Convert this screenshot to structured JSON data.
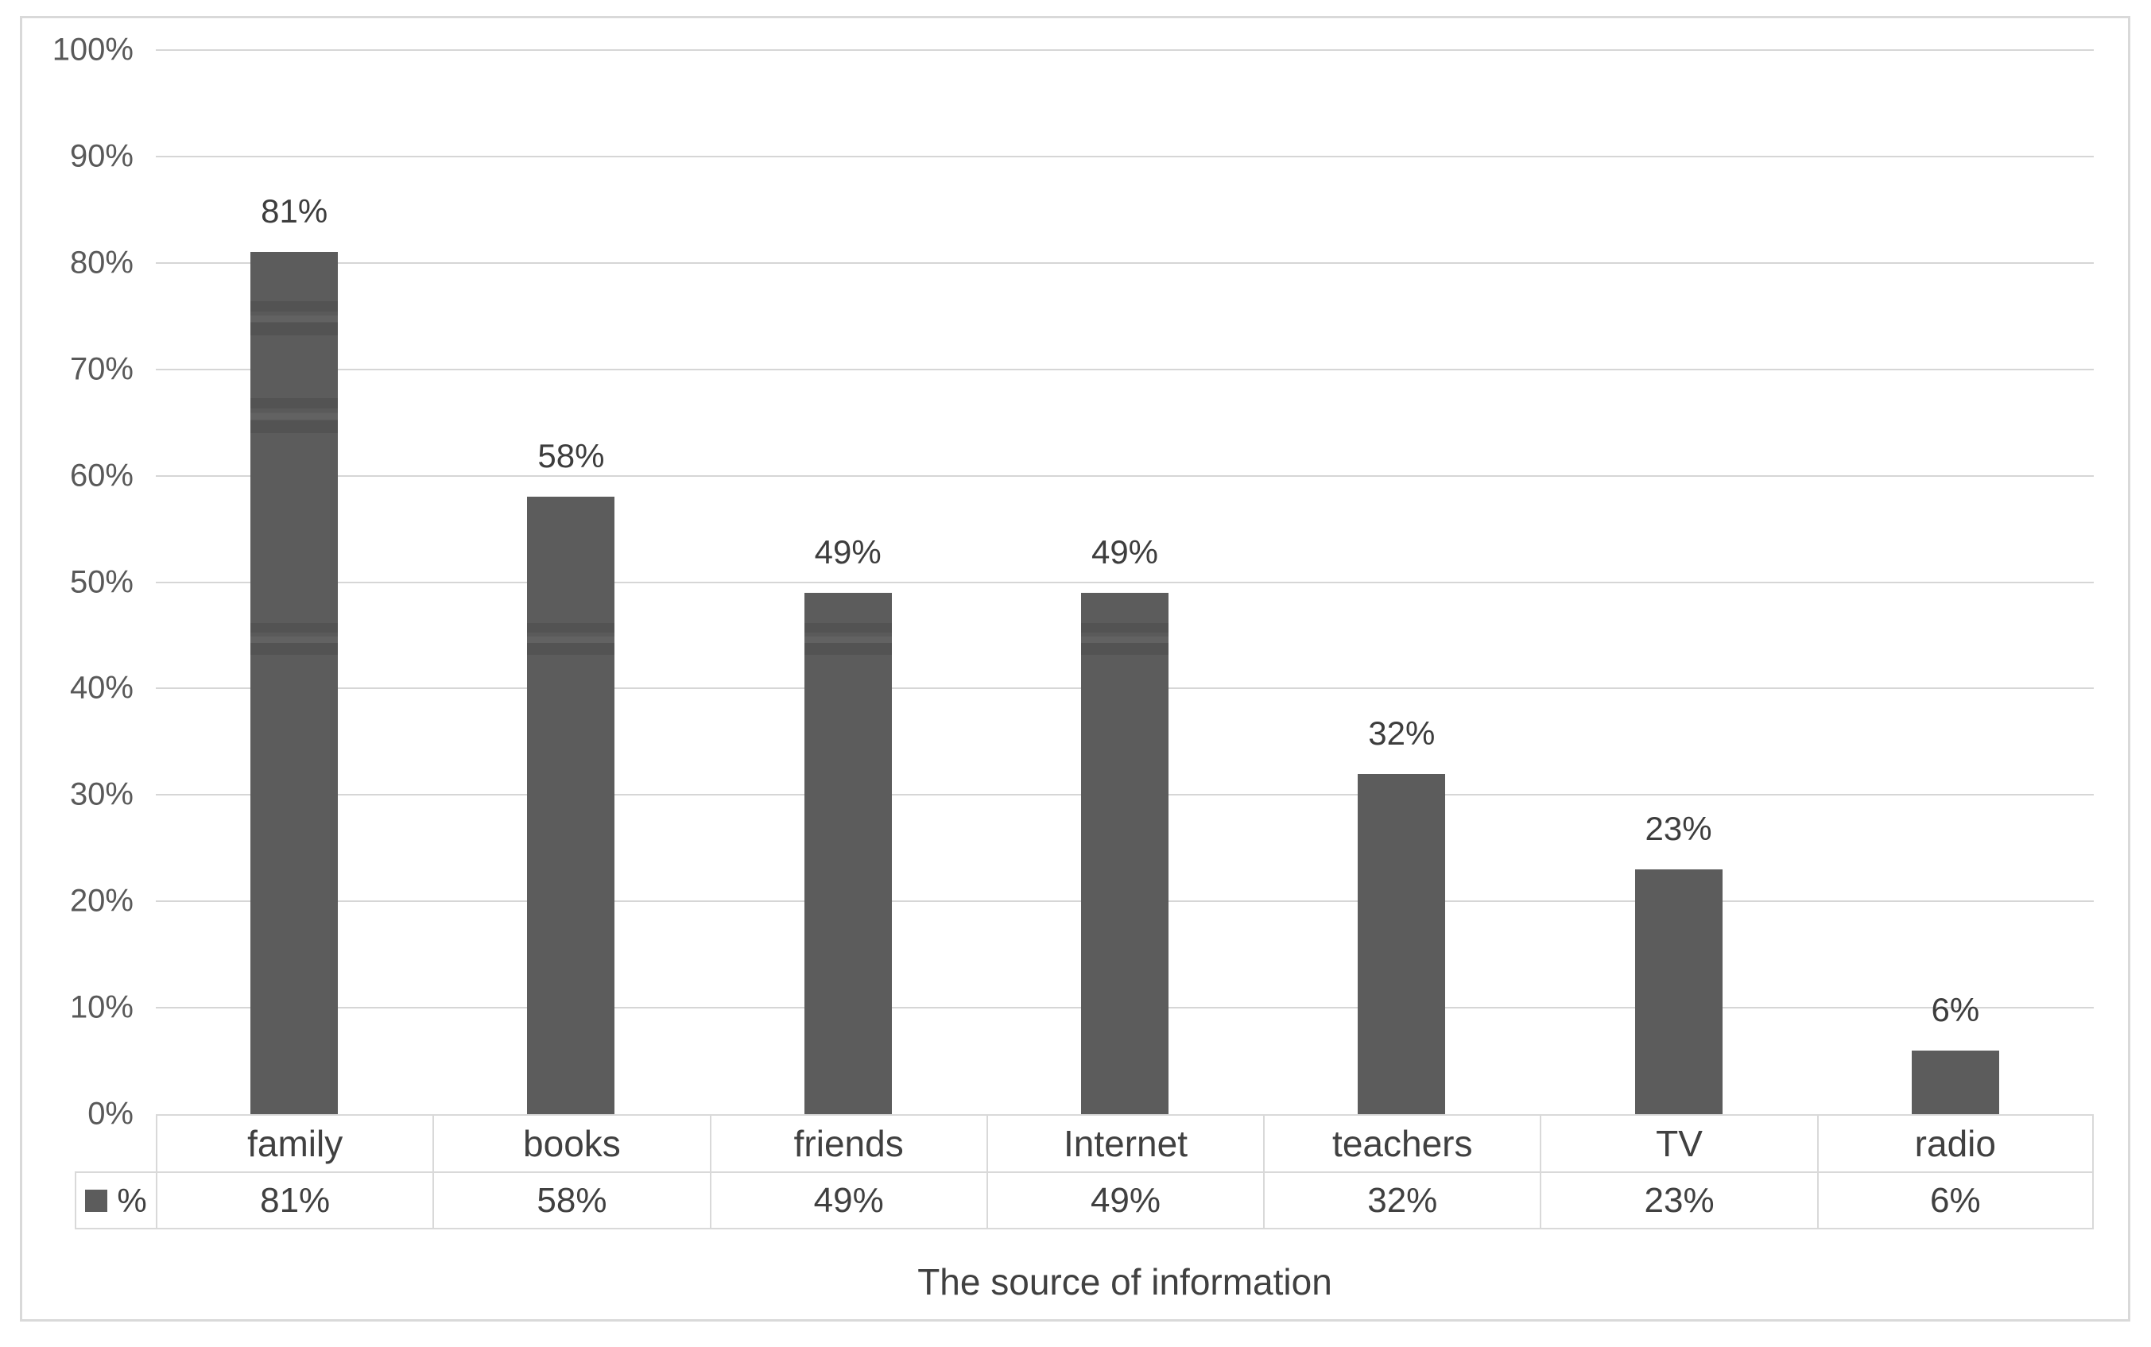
{
  "title": "The source of information",
  "chart_data": {
    "type": "bar",
    "categories": [
      "family",
      "books",
      "friends",
      "Internet",
      "teachers",
      "TV",
      "radio"
    ],
    "series": [
      {
        "name": "%",
        "values": [
          81,
          58,
          49,
          49,
          32,
          23,
          6
        ]
      }
    ],
    "value_labels": [
      "81%",
      "58%",
      "49%",
      "49%",
      "32%",
      "23%",
      "6%"
    ],
    "title": "",
    "xlabel": "The source of information",
    "ylabel": "",
    "ylim": [
      0,
      100
    ],
    "ytick_step": 10,
    "ytick_labels": [
      "0%",
      "10%",
      "20%",
      "30%",
      "40%",
      "50%",
      "60%",
      "70%",
      "80%",
      "90%",
      "100%"
    ],
    "grid": true,
    "legend_position": "data-table-left",
    "data_table": {
      "legend_key_label": "%",
      "header_row": [
        "family",
        "books",
        "friends",
        "Internet",
        "teachers",
        "TV",
        "radio"
      ],
      "value_row": [
        "81%",
        "58%",
        "49%",
        "49%",
        "32%",
        "23%",
        "6%"
      ]
    }
  },
  "colors": {
    "bar": "#5c5c5c",
    "grid": "#d6d6d6",
    "frame": "#d9d9d9",
    "tick_text": "#595959",
    "label_text": "#3d3d3d"
  }
}
